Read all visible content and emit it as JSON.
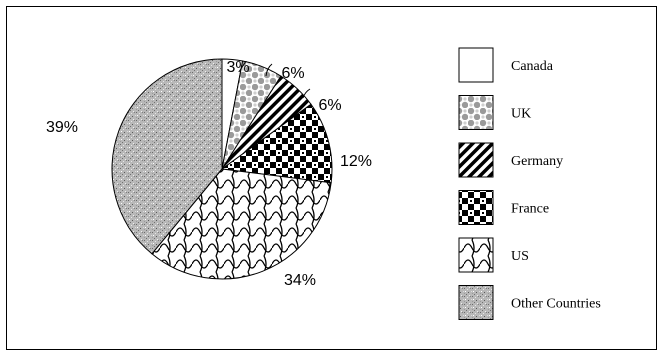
{
  "chart_data": {
    "type": "pie",
    "title": "",
    "categories": [
      "Canada",
      "UK",
      "Germany",
      "France",
      "US",
      "Other Countries"
    ],
    "values": [
      3,
      6,
      6,
      12,
      34,
      39
    ],
    "value_labels": [
      "3%",
      "6%",
      "6%",
      "12%",
      "34%",
      "39%"
    ],
    "legend_placement": "right",
    "slice_patterns": [
      "blank",
      "dots",
      "diagonal-stripes",
      "checker",
      "wave",
      "speckle"
    ]
  }
}
